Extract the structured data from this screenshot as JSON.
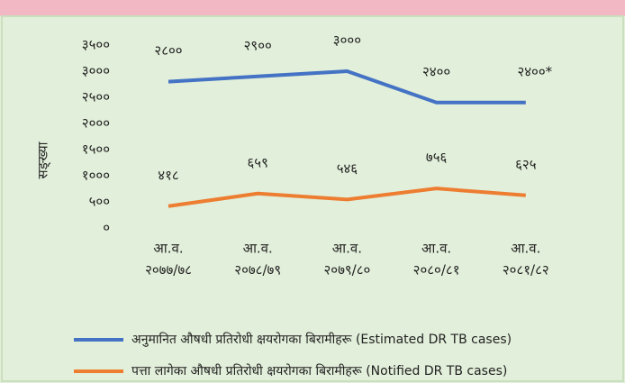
{
  "chart_data": {
    "type": "line",
    "ylabel": "सङ्ख्या",
    "categories": [
      [
        "आ.व.",
        "२०७७/७८"
      ],
      [
        "आ.व.",
        "२०७८/७९"
      ],
      [
        "आ.व.",
        "२०७९/८०"
      ],
      [
        "आ.व.",
        "२०८०/८१"
      ],
      [
        "आ.व.",
        "२०८१/८२"
      ]
    ],
    "series": [
      {
        "name": "अनुमानित औषधी प्रतिरोधी क्षयरोगका बिरामीहरू (Estimated DR TB cases)",
        "color": "#4472c4",
        "values": [
          2800,
          2900,
          3000,
          2400,
          2400
        ],
        "value_labels": [
          "२८००",
          "२९००",
          "३०००",
          "२४००",
          "२४००*"
        ]
      },
      {
        "name": "पत्ता लागेका औषधी प्रतिरोधी क्षयरोगका बिरामीहरू (Notified DR TB cases)",
        "color": "#ed7d31",
        "values": [
          418,
          659,
          546,
          756,
          625
        ],
        "value_labels": [
          "४१८",
          "६५९",
          "५४६",
          "७५६",
          "६२५"
        ]
      }
    ],
    "ylim": [
      0,
      3500
    ],
    "yticks": [
      {
        "value": 0,
        "label": "०"
      },
      {
        "value": 500,
        "label": "५००"
      },
      {
        "value": 1000,
        "label": "१०००"
      },
      {
        "value": 1500,
        "label": "१५००"
      },
      {
        "value": 2000,
        "label": "२०००"
      },
      {
        "value": 2500,
        "label": "२५००"
      },
      {
        "value": 3000,
        "label": "३०००"
      },
      {
        "value": 3500,
        "label": "३५००"
      }
    ],
    "grid": false,
    "legend": "bottom"
  }
}
